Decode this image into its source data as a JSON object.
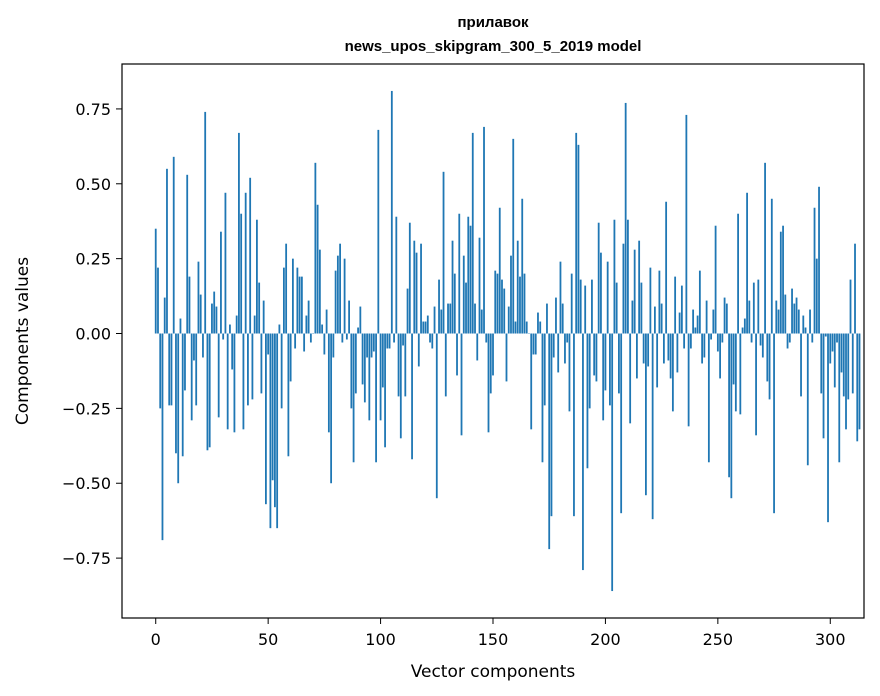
{
  "chart_data": {
    "type": "bar",
    "title_line1": "прилавок",
    "title_line2": "news_upos_skipgram_300_5_2019 model",
    "xlabel": "Vector components",
    "ylabel": "Components values",
    "xlim": [
      -15,
      315
    ],
    "ylim": [
      -0.95,
      0.9
    ],
    "xticks": [
      0,
      50,
      100,
      150,
      200,
      250,
      300
    ],
    "yticks": [
      -0.75,
      -0.5,
      -0.25,
      0.0,
      0.25,
      0.5,
      0.75
    ],
    "ytick_labels": [
      "−0.75",
      "−0.50",
      "−0.25",
      "0.00",
      "0.25",
      "0.50",
      "0.75"
    ],
    "bar_color": "#1f77b4",
    "values": [
      0.35,
      0.22,
      -0.25,
      -0.69,
      0.12,
      0.55,
      -0.24,
      -0.24,
      0.59,
      -0.4,
      -0.5,
      0.05,
      -0.41,
      -0.19,
      0.53,
      0.19,
      -0.29,
      -0.09,
      -0.24,
      0.24,
      0.13,
      -0.08,
      0.74,
      -0.39,
      -0.38,
      0.1,
      0.14,
      0.09,
      -0.28,
      0.34,
      -0.02,
      0.47,
      -0.32,
      0.03,
      -0.12,
      -0.33,
      0.06,
      0.67,
      0.4,
      -0.32,
      0.47,
      -0.24,
      0.52,
      -0.22,
      0.06,
      0.38,
      0.17,
      -0.2,
      0.11,
      -0.57,
      -0.07,
      -0.65,
      -0.49,
      -0.58,
      -0.65,
      0.03,
      -0.25,
      0.22,
      0.3,
      -0.41,
      -0.16,
      0.25,
      -0.05,
      0.22,
      0.19,
      0.19,
      -0.06,
      0.06,
      0.11,
      -0.03,
      0.0,
      0.57,
      0.43,
      0.28,
      0.03,
      -0.07,
      0.08,
      -0.33,
      -0.5,
      -0.08,
      0.21,
      0.26,
      0.3,
      -0.03,
      0.25,
      -0.02,
      0.11,
      -0.25,
      -0.43,
      -0.2,
      0.02,
      0.09,
      -0.17,
      -0.23,
      -0.08,
      -0.29,
      -0.08,
      -0.06,
      -0.43,
      0.68,
      -0.29,
      -0.18,
      -0.38,
      -0.05,
      -0.05,
      0.81,
      -0.03,
      0.39,
      -0.21,
      -0.35,
      -0.04,
      -0.21,
      0.15,
      0.37,
      -0.42,
      0.31,
      0.27,
      -0.11,
      0.3,
      0.04,
      0.04,
      0.06,
      -0.03,
      -0.05,
      0.09,
      -0.55,
      0.18,
      0.08,
      0.54,
      -0.21,
      0.1,
      0.1,
      0.31,
      0.2,
      -0.14,
      0.4,
      -0.34,
      0.26,
      0.17,
      0.39,
      0.36,
      0.67,
      0.1,
      -0.09,
      0.32,
      0.08,
      0.69,
      -0.03,
      -0.33,
      -0.2,
      -0.14,
      0.21,
      0.2,
      0.42,
      0.18,
      0.15,
      -0.16,
      0.09,
      0.26,
      0.65,
      0.04,
      0.31,
      0.19,
      0.45,
      0.2,
      0.04,
      0.0,
      -0.32,
      -0.07,
      -0.07,
      0.07,
      0.04,
      -0.43,
      -0.24,
      0.1,
      -0.72,
      -0.61,
      -0.08,
      0.12,
      -0.13,
      0.24,
      0.1,
      -0.1,
      -0.03,
      -0.26,
      0.2,
      -0.61,
      0.67,
      0.63,
      0.18,
      -0.79,
      0.16,
      -0.45,
      -0.25,
      0.18,
      -0.14,
      -0.16,
      0.37,
      0.27,
      -0.29,
      -0.19,
      0.24,
      -0.24,
      -0.86,
      0.38,
      0.17,
      -0.2,
      -0.6,
      0.3,
      0.77,
      0.38,
      -0.3,
      0.11,
      0.28,
      -0.15,
      0.31,
      0.17,
      -0.1,
      -0.54,
      -0.11,
      0.22,
      -0.62,
      0.09,
      -0.18,
      0.21,
      0.1,
      -0.1,
      0.44,
      -0.09,
      -0.15,
      -0.26,
      0.19,
      -0.13,
      0.07,
      0.16,
      -0.05,
      0.73,
      -0.31,
      -0.05,
      0.08,
      0.02,
      0.06,
      0.21,
      -0.1,
      -0.08,
      0.11,
      -0.43,
      -0.02,
      0.08,
      0.36,
      -0.06,
      -0.15,
      -0.03,
      0.12,
      0.1,
      -0.48,
      -0.55,
      -0.17,
      -0.26,
      0.4,
      -0.27,
      0.02,
      0.05,
      0.47,
      0.11,
      -0.03,
      0.17,
      -0.34,
      0.18,
      -0.04,
      -0.08,
      0.57,
      -0.16,
      -0.22,
      0.45,
      -0.6,
      0.11,
      0.08,
      0.34,
      0.36,
      0.13,
      -0.05,
      -0.03,
      0.15,
      0.1,
      0.12,
      0.08,
      -0.21,
      0.06,
      0.02,
      -0.44,
      0.08,
      -0.03,
      0.42,
      0.25,
      0.49,
      -0.2,
      -0.35,
      -0.01,
      -0.63,
      -0.1,
      -0.06,
      -0.18,
      -0.03,
      -0.43,
      -0.13,
      -0.21,
      -0.32,
      -0.22,
      0.18,
      -0.2,
      0.3,
      -0.36,
      -0.32
    ]
  }
}
